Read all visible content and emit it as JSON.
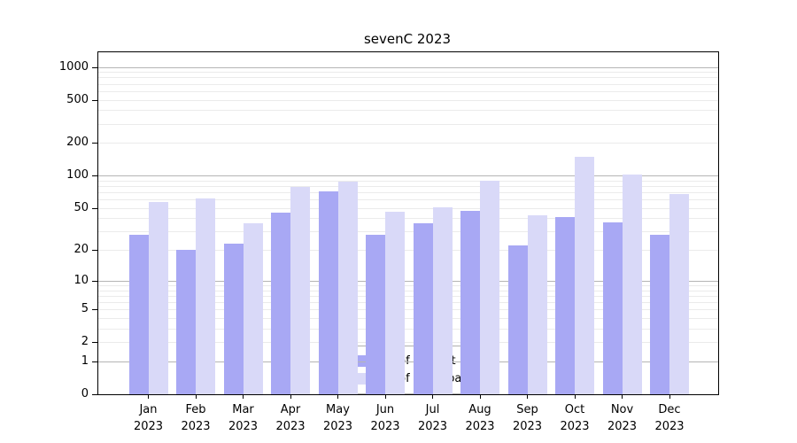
{
  "title": "sevenC 2023",
  "colors": {
    "distinct_ips": "#a8a8f4",
    "downloads": "#d9d9f8",
    "grid_major": "#b5b5b5",
    "grid_minor": "#ebebeb",
    "axis": "#000000",
    "background": "#ffffff",
    "legend_border": "#b0b0b0"
  },
  "legend": {
    "items": [
      {
        "label": "Nb of distinct IPs",
        "series": "distinct_ips"
      },
      {
        "label": "Nb of downloads",
        "series": "downloads"
      }
    ]
  },
  "chart_data": {
    "type": "bar",
    "title": "sevenC 2023",
    "categories": [
      "Jan 2023",
      "Feb 2023",
      "Mar 2023",
      "Apr 2023",
      "May 2023",
      "Jun 2023",
      "Jul 2023",
      "Aug 2023",
      "Sep 2023",
      "Oct 2023",
      "Nov 2023",
      "Dec 2023"
    ],
    "series": [
      {
        "name": "Nb of distinct IPs",
        "color": "#a8a8f4",
        "values": [
          28,
          20,
          23,
          45,
          72,
          28,
          36,
          47,
          22,
          41,
          37,
          28
        ]
      },
      {
        "name": "Nb of downloads",
        "color": "#d9d9f8",
        "values": [
          57,
          61,
          36,
          78,
          88,
          46,
          51,
          90,
          43,
          150,
          102,
          67
        ]
      }
    ],
    "xlabel": "",
    "ylabel": "",
    "y_scale": "log10(1+y)",
    "y_ticks": [
      0,
      1,
      2,
      5,
      10,
      20,
      50,
      100,
      200,
      500,
      1000
    ],
    "y_major_gridlines": [
      1,
      10,
      100,
      1000
    ],
    "ylim": [
      0,
      1350
    ],
    "grid": true,
    "legend_position": "lower center"
  }
}
